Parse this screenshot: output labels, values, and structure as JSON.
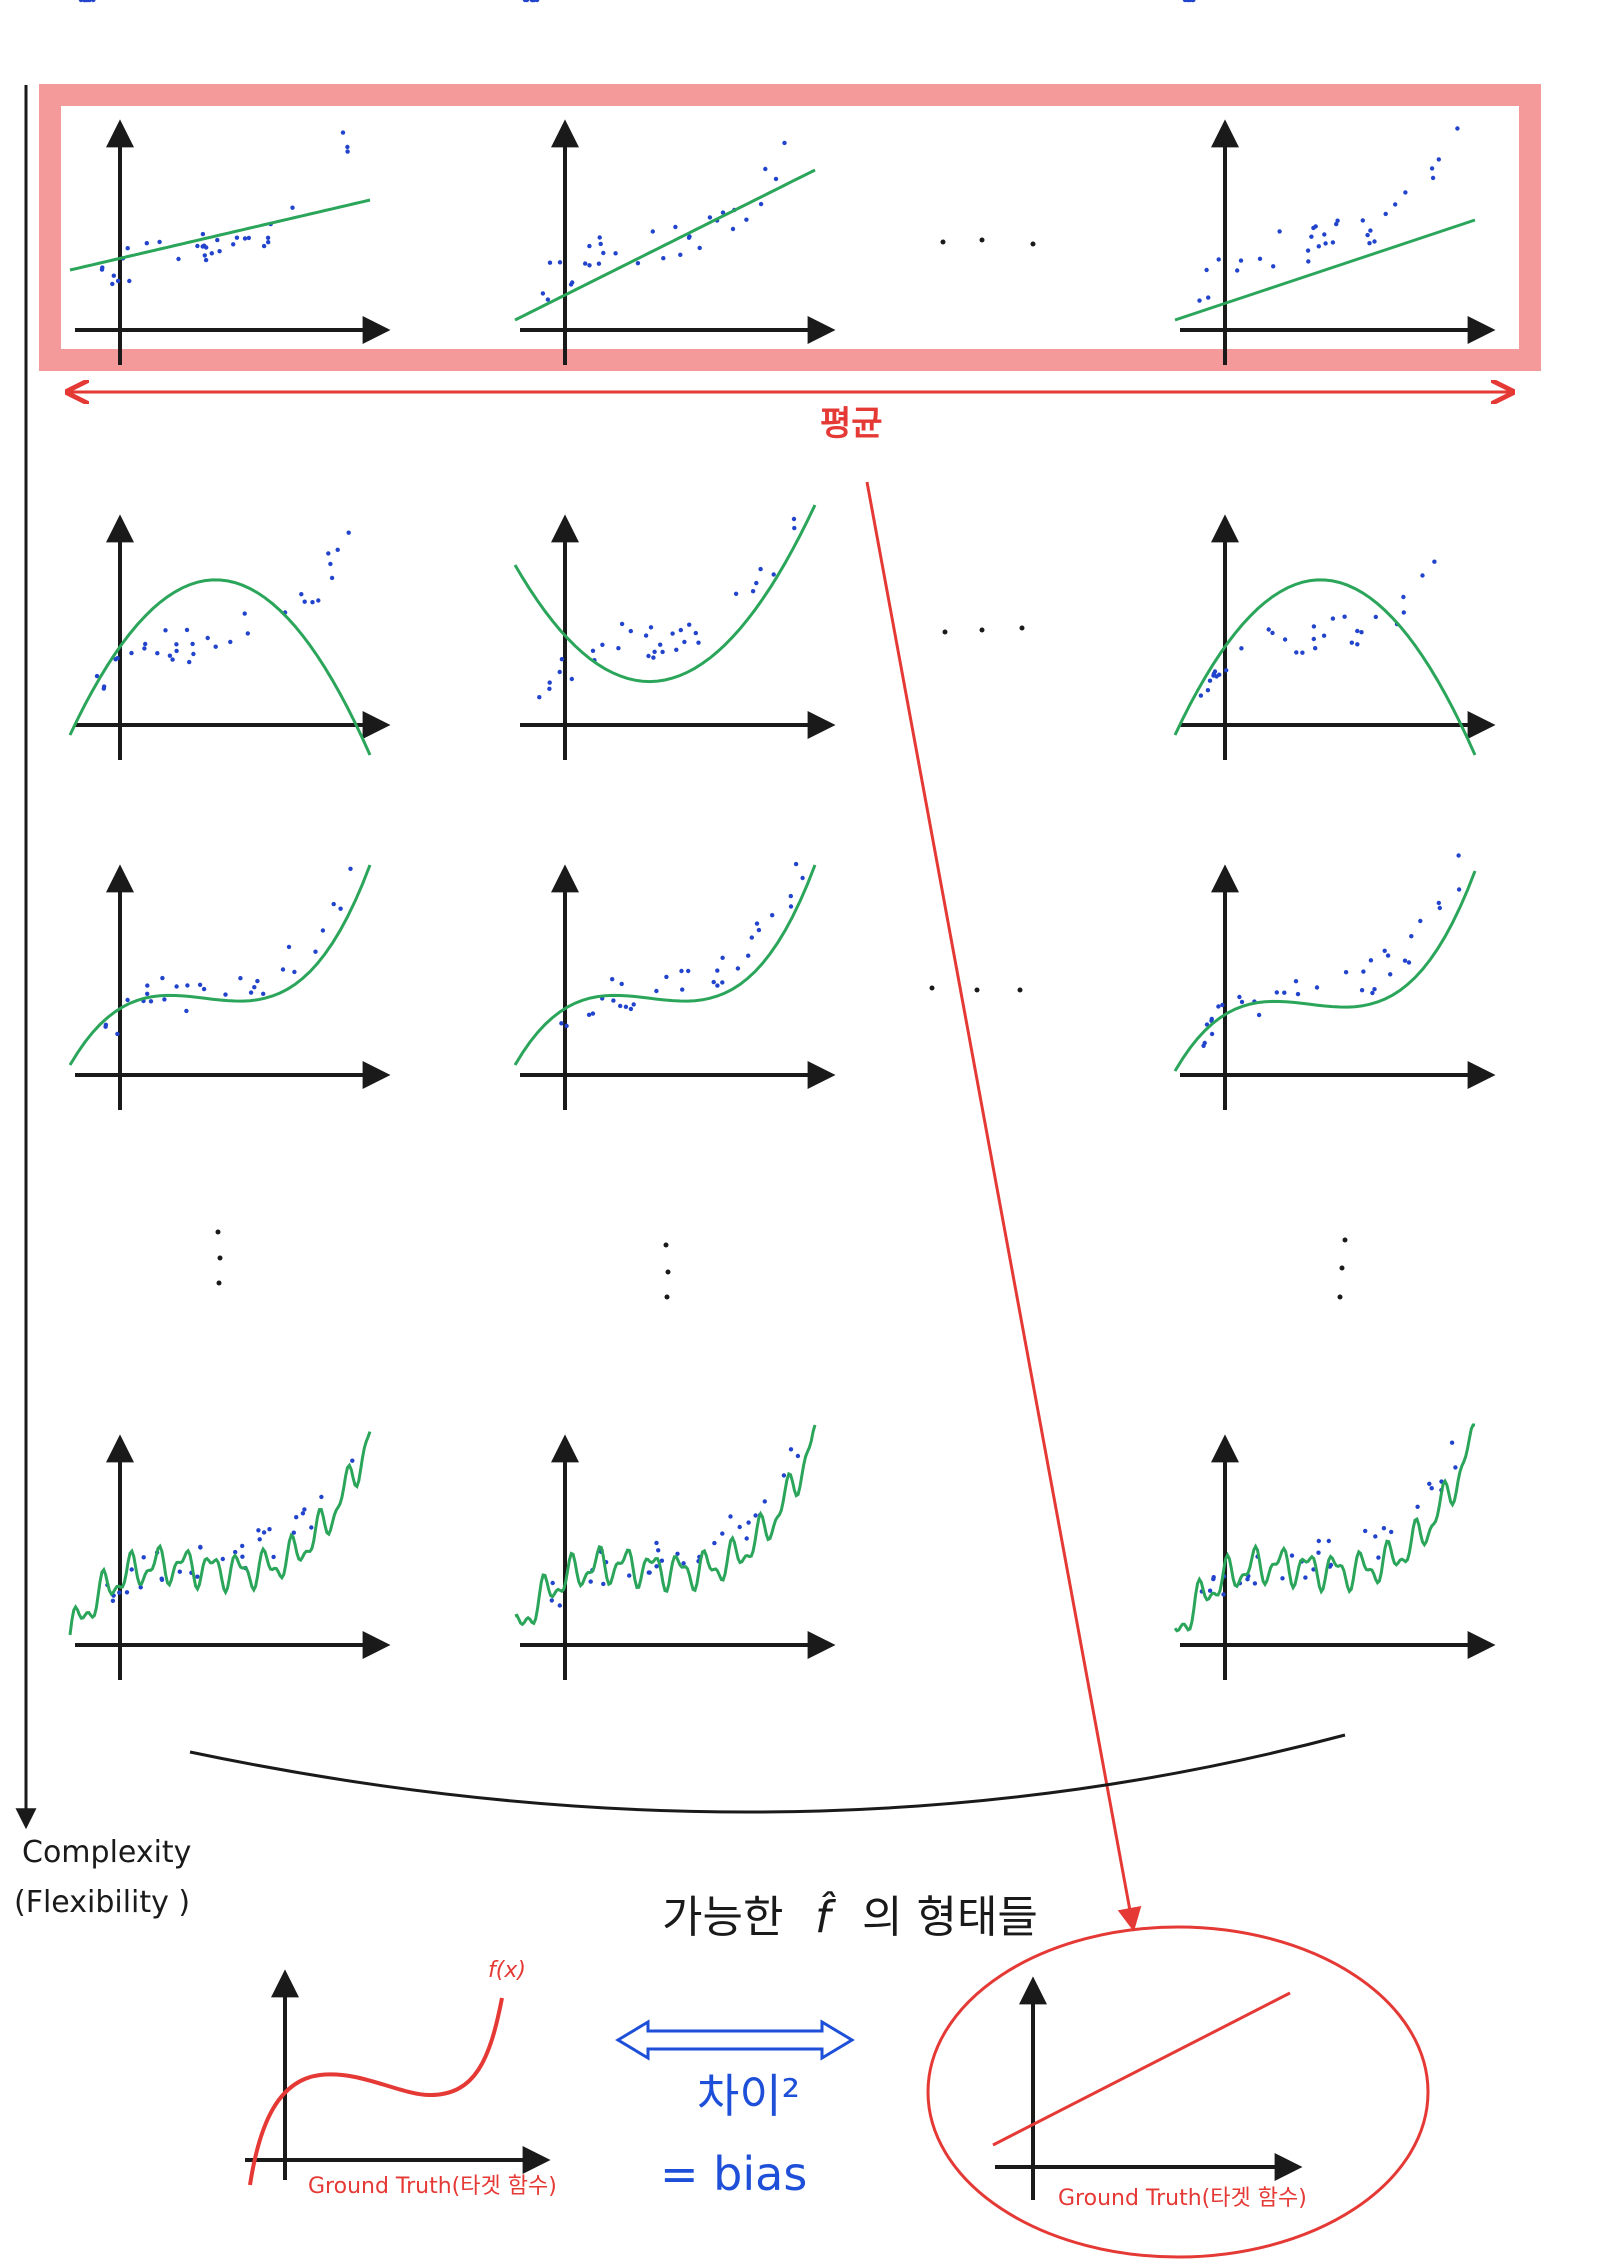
{
  "labels": {
    "average": "평균",
    "complexity_line1": "Complexity",
    "complexity_line2": "(Flexibility )",
    "possible_forms_prefix": "가능한",
    "possible_forms_symbol": "f̂",
    "possible_forms_suffix": "의 형태들",
    "difference": "차이²",
    "bias": "= bias",
    "fx": "f(x)",
    "ground_truth": "Ground Truth(타겟 함수)"
  },
  "rows": [
    {
      "model": "linear",
      "panels": 3
    },
    {
      "model": "quadratic",
      "panels": 3
    },
    {
      "model": "cubic",
      "panels": 3
    },
    {
      "model": "high-degree",
      "panels": 3
    }
  ],
  "colors": {
    "fit_curve": "#2aa55a",
    "data_point": "#2244cc",
    "axes": "#1a1a1a",
    "highlight_band": "#f59a9a",
    "red": "#e53935",
    "blue": "#1e4fd8"
  }
}
